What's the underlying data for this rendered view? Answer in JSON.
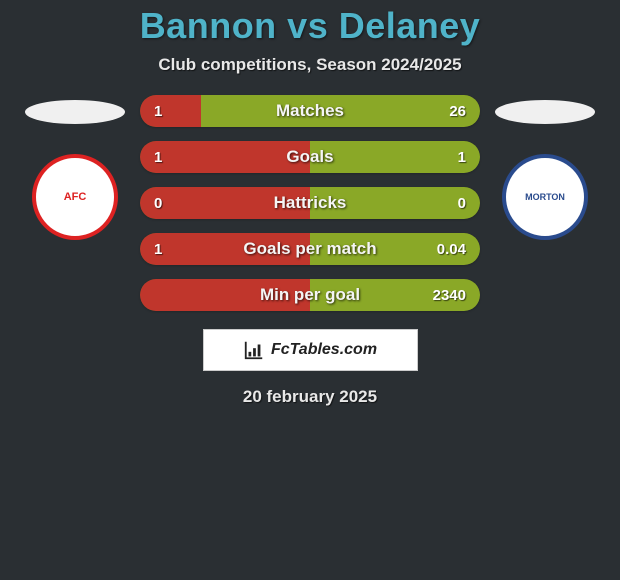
{
  "title": "Bannon vs Delaney",
  "subtitle": "Club competitions, Season 2024/2025",
  "date": "20 february 2025",
  "logo_text": "FcTables.com",
  "colors": {
    "background": "#2a2f33",
    "title": "#4fb3c9",
    "bar_left": "#c0362c",
    "bar_right": "#8aa827",
    "bar_bg": "#5a6a2a"
  },
  "crests": {
    "left": "AFC",
    "right": "MORTON"
  },
  "rows": [
    {
      "label": "Matches",
      "left": "1",
      "right": "26",
      "left_pct": 18,
      "right_pct": 82
    },
    {
      "label": "Goals",
      "left": "1",
      "right": "1",
      "left_pct": 50,
      "right_pct": 50
    },
    {
      "label": "Hattricks",
      "left": "0",
      "right": "0",
      "left_pct": 50,
      "right_pct": 50
    },
    {
      "label": "Goals per match",
      "left": "1",
      "right": "0.04",
      "left_pct": 50,
      "right_pct": 50
    },
    {
      "label": "Min per goal",
      "left": "",
      "right": "2340",
      "left_pct": 50,
      "right_pct": 50
    }
  ]
}
